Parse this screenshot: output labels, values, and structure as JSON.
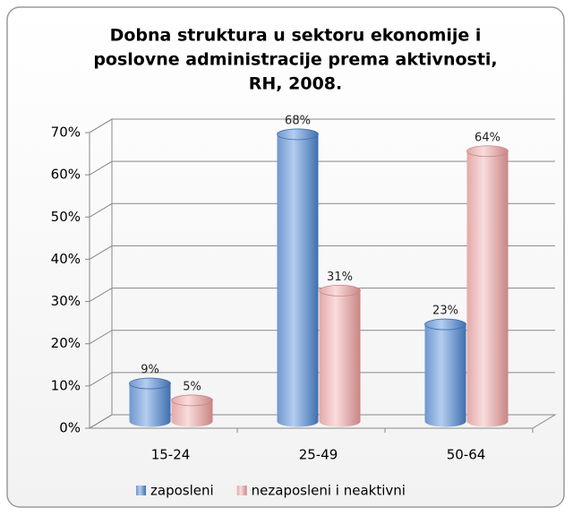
{
  "chart_data": {
    "type": "bar3d",
    "title": [
      "Dobna struktura u sektoru ekonomije i",
      "poslovne administracije prema aktivnosti,",
      "RH, 2008."
    ],
    "categories": [
      "15-24",
      "25-49",
      "50-64"
    ],
    "series": [
      {
        "name": "zaposleni",
        "color": "#4f81bd",
        "values": [
          9,
          68,
          23
        ],
        "value_labels": [
          "9%",
          "68%",
          "23%"
        ]
      },
      {
        "name": "nezaposleni i neaktivni",
        "color": "#d99594",
        "values": [
          5,
          31,
          64
        ],
        "value_labels": [
          "5%",
          "31%",
          "64%"
        ]
      }
    ],
    "ylim": [
      0,
      70
    ],
    "yticks": [
      {
        "value": 0,
        "label": "0%"
      },
      {
        "value": 10,
        "label": "10%"
      },
      {
        "value": 20,
        "label": "20%"
      },
      {
        "value": 30,
        "label": "30%"
      },
      {
        "value": 40,
        "label": "40%"
      },
      {
        "value": 50,
        "label": "50%"
      },
      {
        "value": 60,
        "label": "60%"
      },
      {
        "value": 70,
        "label": "70%"
      }
    ],
    "grid": true,
    "legend": "bottom"
  }
}
